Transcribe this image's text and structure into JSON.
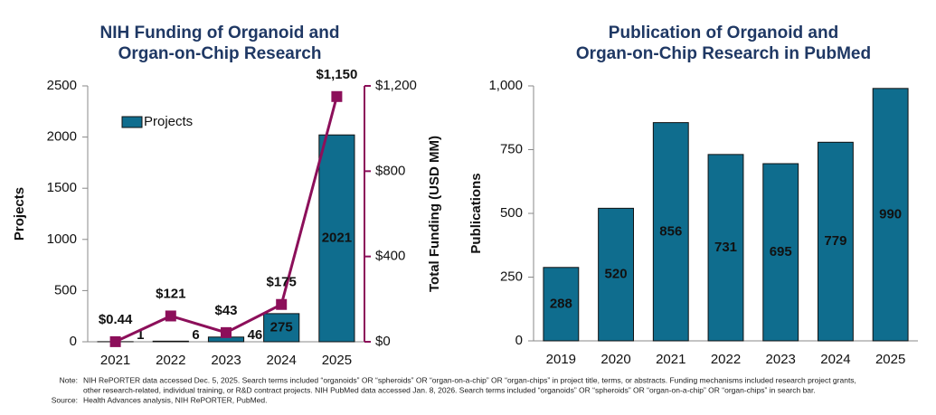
{
  "chart_data": [
    {
      "type": "bar",
      "title": [
        "NIH Funding of Organoid and",
        "Organ-on-Chip Research"
      ],
      "y_label": "Projects",
      "y2_label": "Total Funding (USD MM)",
      "categories": [
        "2021",
        "2022",
        "2023",
        "2024",
        "2025"
      ],
      "series": [
        {
          "name": "Projects",
          "type": "bar",
          "color": "#0f6d8e",
          "values": [
            1,
            6,
            46,
            275,
            2021
          ]
        },
        {
          "type": "line",
          "axis": "y2",
          "color": "#8c0f5a",
          "values": [
            0.44,
            121,
            43,
            175,
            1150
          ],
          "value_labels": [
            "$0.44",
            "$121",
            "$43",
            "$175",
            "$1,150"
          ]
        }
      ],
      "ylim": [
        0,
        2500
      ],
      "yticks": [
        0,
        500,
        1000,
        1500,
        2000,
        2500
      ],
      "y2lim": [
        0,
        1200
      ],
      "y2ticks": [
        {
          "value": 0,
          "label": "$0"
        },
        {
          "value": 400,
          "label": "$400"
        },
        {
          "value": 800,
          "label": "$800"
        },
        {
          "value": 1200,
          "label": "$1,200"
        }
      ],
      "legend": "top-left",
      "grid": false
    },
    {
      "type": "bar",
      "title": [
        "Publication of Organoid and",
        "Organ-on-Chip Research in PubMed"
      ],
      "y_label": "Publications",
      "categories": [
        "2019",
        "2020",
        "2021",
        "2022",
        "2023",
        "2024",
        "2025"
      ],
      "series": [
        {
          "type": "bar",
          "color": "#0f6d8e",
          "values": [
            288,
            520,
            856,
            731,
            695,
            779,
            990
          ]
        }
      ],
      "ylim": [
        0,
        1000
      ],
      "yticks": [
        0,
        250,
        500,
        750,
        {
          "value": 1000,
          "label": "1,000"
        }
      ],
      "grid": false
    }
  ],
  "footnote": {
    "note_label": "Note:",
    "note": [
      "NIH RePORTER data accessed Dec. 5, 2025. Search terms included “organoids” OR “spheroids” OR “organ-on-a-chip” OR “organ-chips”  in project title, terms, or abstracts. Funding mechanisms included research project grants,",
      "other research-related, individual training, or R&D contract projects. NIH PubMed data accessed Jan. 8, 2026. Search terms included “organoids” OR “spheroids” OR “organ-on-a-chip” OR “organ-chips” in search bar."
    ],
    "source_label": "Source:",
    "source": "Health Advances analysis, NIH RePORTER, PubMed."
  }
}
